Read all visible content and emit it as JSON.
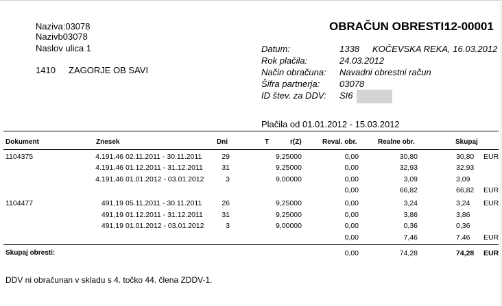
{
  "address": {
    "name_a": "Naziva:03078",
    "name_b": "Nazivb03078",
    "street": "Naslov ulica 1",
    "postal": "1410",
    "city": "ZAGORJE OB SAVI"
  },
  "title": {
    "label": "OBRAČUN OBRESTI:",
    "number": "12-00001"
  },
  "info": [
    {
      "label": "Datum:",
      "code": "1338",
      "value": "KOČEVSKA REKA, 16.03.2012"
    },
    {
      "label": "Rok plačila:",
      "value": "24.03.2012"
    },
    {
      "label": "Način obračuna:",
      "value": "Navadni obrestni račun"
    },
    {
      "label": "Šifra partnerja:",
      "value": "03078"
    },
    {
      "label": "ID štev. za DDV:",
      "value": "SI6"
    }
  ],
  "period": "Plačila od 01.01.2012 - 15.03.2012",
  "table": {
    "headers": [
      "Dokument",
      "Znesek",
      "Dni",
      "T",
      "r(Z)",
      "Reval. obr.",
      "Realne obr.",
      "Skupaj"
    ],
    "rows": [
      {
        "document": "1104375",
        "amount": "4.191,46",
        "period": "02.11.2011 - 30.11.2011",
        "days": "29",
        "rate": "9,25000",
        "reval": "0,00",
        "real": "30,80",
        "total": "30,80",
        "currency": "EUR"
      },
      {
        "amount": "4.191,46",
        "period": "01.12.2011 - 31.12.2011",
        "days": "31",
        "rate": "9,25000",
        "reval": "0,00",
        "real": "32,93",
        "total": "32,93"
      },
      {
        "amount": "4.191,46",
        "period": "01.01.2012 - 03.01.2012",
        "days": "3",
        "rate": "9,00000",
        "reval": "0,00",
        "real": "3,09",
        "total": "3,09"
      },
      {
        "reval": "0,00",
        "real": "66,82",
        "total": "66,82",
        "currency": "EUR"
      },
      {
        "document": "1104477",
        "amount": "491,19",
        "period": "05.11.2011 - 30.11.2011",
        "days": "26",
        "rate": "9,25000",
        "reval": "0,00",
        "real": "3,24",
        "total": "3,24",
        "currency": "EUR"
      },
      {
        "amount": "491,19",
        "period": "01.12.2011 - 31.12.2011",
        "days": "31",
        "rate": "9,25000",
        "reval": "0,00",
        "real": "3,86",
        "total": "3,86"
      },
      {
        "amount": "491,19",
        "period": "01.01.2012 - 03.01.2012",
        "days": "3",
        "rate": "9,00000",
        "reval": "0,00",
        "real": "0,36",
        "total": "0,36"
      },
      {
        "reval": "0,00",
        "real": "7,46",
        "total": "7,46",
        "currency": "EUR"
      }
    ],
    "total_row": {
      "label": "Skupaj obresti:",
      "reval": "0,00",
      "real": "74,28",
      "total": "74,28",
      "currency": "EUR"
    }
  },
  "footer": "DDV ni obračunan v skladu s 4. točko 44. člena ZDDV-1."
}
